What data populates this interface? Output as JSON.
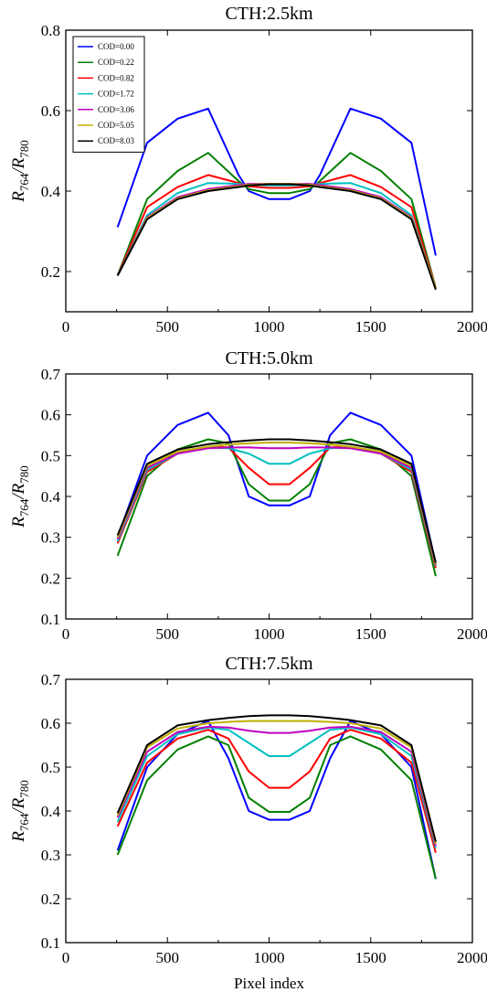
{
  "chart_data": [
    {
      "type": "line",
      "title": "CTH:2.5km",
      "xlabel": "",
      "ylabel_main": "R",
      "ylabel_sub1": "764",
      "ylabel_sep": "/R",
      "ylabel_sub2": "780",
      "xlim": [
        0,
        2000
      ],
      "ylim": [
        0.1,
        0.8
      ],
      "xticks": [
        "0",
        "500",
        "1000",
        "1500",
        "2000"
      ],
      "yticks": [
        "0.2",
        "0.4",
        "0.6",
        "0.8"
      ],
      "legend": "top-left",
      "x": [
        255,
        400,
        550,
        700,
        850,
        900,
        1000,
        1100,
        1200,
        1250,
        1400,
        1550,
        1700,
        1820
      ],
      "series": [
        {
          "name": "COD=0.00",
          "color": "#0000ff",
          "values": [
            0.31,
            0.52,
            0.58,
            0.605,
            0.44,
            0.4,
            0.38,
            0.38,
            0.4,
            0.44,
            0.605,
            0.58,
            0.52,
            0.24
          ]
        },
        {
          "name": "COD=0.22",
          "color": "#008000",
          "values": [
            0.19,
            0.38,
            0.45,
            0.495,
            0.425,
            0.405,
            0.395,
            0.395,
            0.405,
            0.425,
            0.495,
            0.45,
            0.38,
            0.16
          ]
        },
        {
          "name": "COD=0.82",
          "color": "#ff0000",
          "values": [
            0.19,
            0.36,
            0.41,
            0.44,
            0.42,
            0.412,
            0.408,
            0.408,
            0.412,
            0.42,
            0.44,
            0.41,
            0.36,
            0.16
          ]
        },
        {
          "name": "COD=1.72",
          "color": "#00c0c0",
          "values": [
            0.19,
            0.34,
            0.395,
            0.42,
            0.418,
            0.416,
            0.414,
            0.414,
            0.416,
            0.418,
            0.42,
            0.395,
            0.34,
            0.16
          ]
        },
        {
          "name": "COD=3.06",
          "color": "#c000c0",
          "values": [
            0.19,
            0.335,
            0.385,
            0.405,
            0.415,
            0.418,
            0.418,
            0.418,
            0.418,
            0.415,
            0.405,
            0.385,
            0.335,
            0.16
          ]
        },
        {
          "name": "COD=5.05",
          "color": "#c0b000",
          "values": [
            0.19,
            0.333,
            0.382,
            0.402,
            0.412,
            0.416,
            0.418,
            0.418,
            0.416,
            0.412,
            0.402,
            0.382,
            0.333,
            0.16
          ]
        },
        {
          "name": "COD=8.03",
          "color": "#000000",
          "values": [
            0.19,
            0.33,
            0.38,
            0.4,
            0.41,
            0.414,
            0.417,
            0.417,
            0.414,
            0.41,
            0.4,
            0.38,
            0.33,
            0.155
          ]
        }
      ]
    },
    {
      "type": "line",
      "title": "CTH:5.0km",
      "xlabel": "",
      "ylabel_main": "R",
      "ylabel_sub1": "764",
      "ylabel_sep": "/R",
      "ylabel_sub2": "780",
      "xlim": [
        0,
        2000
      ],
      "ylim": [
        0.1,
        0.7
      ],
      "xticks": [
        "0",
        "500",
        "1000",
        "1500",
        "2000"
      ],
      "yticks": [
        "0.1",
        "0.2",
        "0.3",
        "0.4",
        "0.5",
        "0.6",
        "0.7"
      ],
      "x": [
        255,
        400,
        550,
        700,
        800,
        900,
        1000,
        1100,
        1200,
        1300,
        1400,
        1550,
        1700,
        1820
      ],
      "series": [
        {
          "name": "COD=0.00",
          "color": "#0000ff",
          "values": [
            0.3,
            0.5,
            0.575,
            0.605,
            0.55,
            0.4,
            0.378,
            0.378,
            0.4,
            0.55,
            0.605,
            0.575,
            0.5,
            0.235
          ]
        },
        {
          "name": "COD=0.22",
          "color": "#008000",
          "values": [
            0.255,
            0.45,
            0.515,
            0.54,
            0.53,
            0.43,
            0.39,
            0.39,
            0.43,
            0.53,
            0.54,
            0.515,
            0.45,
            0.205
          ]
        },
        {
          "name": "COD=0.82",
          "color": "#ff0000",
          "values": [
            0.285,
            0.46,
            0.505,
            0.522,
            0.52,
            0.47,
            0.43,
            0.43,
            0.47,
            0.52,
            0.522,
            0.505,
            0.46,
            0.225
          ]
        },
        {
          "name": "COD=1.72",
          "color": "#00c0c0",
          "values": [
            0.29,
            0.465,
            0.505,
            0.52,
            0.518,
            0.505,
            0.48,
            0.48,
            0.505,
            0.518,
            0.52,
            0.505,
            0.465,
            0.23
          ]
        },
        {
          "name": "COD=3.06",
          "color": "#c000c0",
          "values": [
            0.295,
            0.47,
            0.505,
            0.518,
            0.52,
            0.52,
            0.518,
            0.518,
            0.52,
            0.52,
            0.518,
            0.505,
            0.47,
            0.233
          ]
        },
        {
          "name": "COD=5.05",
          "color": "#c0b000",
          "values": [
            0.3,
            0.475,
            0.51,
            0.522,
            0.527,
            0.53,
            0.532,
            0.532,
            0.53,
            0.527,
            0.522,
            0.51,
            0.475,
            0.235
          ]
        },
        {
          "name": "COD=8.03",
          "color": "#000000",
          "values": [
            0.305,
            0.48,
            0.515,
            0.528,
            0.533,
            0.537,
            0.54,
            0.54,
            0.537,
            0.533,
            0.528,
            0.515,
            0.48,
            0.238
          ]
        }
      ]
    },
    {
      "type": "line",
      "title": "CTH:7.5km",
      "xlabel": "Pixel index",
      "ylabel_main": "R",
      "ylabel_sub1": "764",
      "ylabel_sep": "/R",
      "ylabel_sub2": "780",
      "xlim": [
        0,
        2000
      ],
      "ylim": [
        0.1,
        0.7
      ],
      "xticks": [
        "0",
        "500",
        "1000",
        "1500",
        "2000"
      ],
      "yticks": [
        "0.1",
        "0.2",
        "0.3",
        "0.4",
        "0.5",
        "0.6",
        "0.7"
      ],
      "x": [
        255,
        400,
        550,
        700,
        800,
        900,
        1000,
        1100,
        1200,
        1300,
        1400,
        1550,
        1700,
        1820
      ],
      "series": [
        {
          "name": "COD=0.00",
          "color": "#0000ff",
          "values": [
            0.31,
            0.5,
            0.575,
            0.605,
            0.52,
            0.4,
            0.38,
            0.38,
            0.4,
            0.52,
            0.605,
            0.575,
            0.5,
            0.245
          ]
        },
        {
          "name": "COD=0.22",
          "color": "#008000",
          "values": [
            0.3,
            0.47,
            0.54,
            0.57,
            0.55,
            0.43,
            0.398,
            0.398,
            0.43,
            0.55,
            0.57,
            0.54,
            0.47,
            0.245
          ]
        },
        {
          "name": "COD=0.82",
          "color": "#ff0000",
          "values": [
            0.365,
            0.51,
            0.565,
            0.585,
            0.565,
            0.49,
            0.453,
            0.453,
            0.49,
            0.565,
            0.585,
            0.565,
            0.51,
            0.305
          ]
        },
        {
          "name": "COD=1.72",
          "color": "#00c0c0",
          "values": [
            0.375,
            0.525,
            0.575,
            0.59,
            0.585,
            0.555,
            0.525,
            0.525,
            0.555,
            0.585,
            0.59,
            0.575,
            0.525,
            0.315
          ]
        },
        {
          "name": "COD=3.06",
          "color": "#c000c0",
          "values": [
            0.385,
            0.535,
            0.58,
            0.592,
            0.59,
            0.583,
            0.578,
            0.578,
            0.583,
            0.59,
            0.592,
            0.58,
            0.535,
            0.32
          ]
        },
        {
          "name": "COD=5.05",
          "color": "#c0b000",
          "values": [
            0.39,
            0.545,
            0.588,
            0.6,
            0.603,
            0.605,
            0.605,
            0.605,
            0.605,
            0.603,
            0.6,
            0.588,
            0.545,
            0.325
          ]
        },
        {
          "name": "COD=8.03",
          "color": "#000000",
          "values": [
            0.395,
            0.55,
            0.595,
            0.607,
            0.612,
            0.616,
            0.618,
            0.618,
            0.616,
            0.612,
            0.607,
            0.595,
            0.55,
            0.33
          ]
        }
      ]
    }
  ]
}
